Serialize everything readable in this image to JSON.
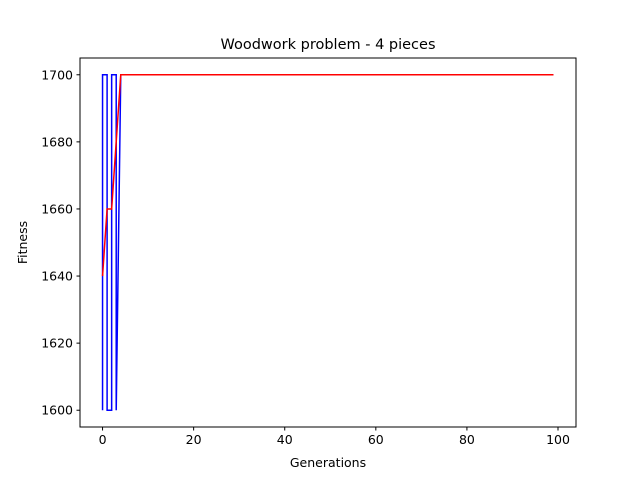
{
  "chart_data": {
    "type": "line",
    "title": "Woodwork problem - 4 pieces",
    "xlabel": "Generations",
    "ylabel": "Fitness",
    "xlim": [
      -4.95,
      103.95
    ],
    "ylim": [
      1595,
      1705
    ],
    "xticks": [
      0,
      20,
      40,
      60,
      80,
      100
    ],
    "yticks": [
      1600,
      1620,
      1640,
      1660,
      1680,
      1700
    ],
    "grid": false,
    "series": [
      {
        "color": "#0000ff",
        "points": [
          [
            0,
            1600
          ],
          [
            0,
            1700
          ],
          [
            1,
            1700
          ],
          [
            1,
            1600
          ],
          [
            2,
            1600
          ],
          [
            2,
            1700
          ],
          [
            3,
            1700
          ],
          [
            3,
            1600
          ],
          [
            4,
            1700
          ],
          [
            99,
            1700
          ]
        ]
      },
      {
        "color": "#ff0000",
        "points": [
          [
            0,
            1640
          ],
          [
            1,
            1660
          ],
          [
            2,
            1660
          ],
          [
            4,
            1700
          ],
          [
            99,
            1700
          ]
        ]
      }
    ]
  }
}
